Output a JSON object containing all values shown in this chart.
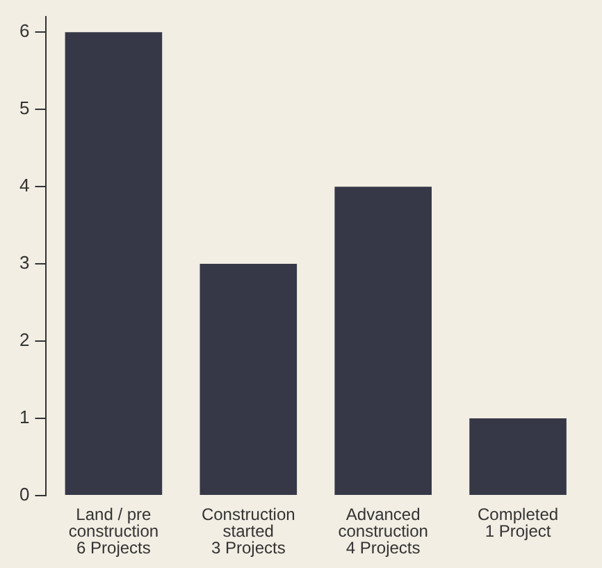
{
  "chart_data": {
    "type": "bar",
    "categories": [
      "Land / pre\nconstruction\n6 Projects",
      "Construction\nstarted\n3 Projects",
      "Advanced\nconstruction\n4 Projects",
      "Completed\n1 Project"
    ],
    "values": [
      6,
      3,
      4,
      1
    ],
    "color": "#363847",
    "ylim": [
      0,
      6.2
    ],
    "yticks": [
      0,
      1,
      2,
      3,
      4,
      5,
      6
    ],
    "grid": false,
    "legend": false
  }
}
